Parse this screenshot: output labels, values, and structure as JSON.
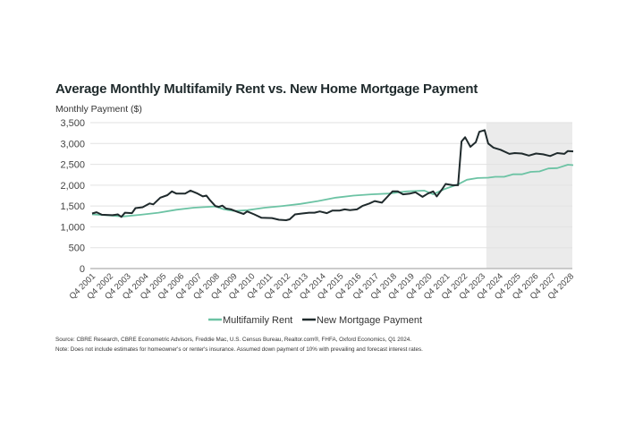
{
  "chart_data": {
    "type": "line",
    "title": "Average Monthly Multifamily Rent vs. New Home Mortgage Payment",
    "ylabel": "Monthly Payment ($)",
    "xlabel": "",
    "ylim": [
      0,
      3500
    ],
    "xlim": [
      2001.75,
      2028.9
    ],
    "yticks": [
      0,
      500,
      1000,
      1500,
      2000,
      2500,
      3000,
      3500
    ],
    "ytick_labels": [
      "0",
      "500",
      "1,000",
      "1,500",
      "2,000",
      "2,500",
      "3,000",
      "3,500"
    ],
    "xtick_labels": [
      "Q4 2001",
      "Q4 2002",
      "Q4 2003",
      "Q4 2004",
      "Q4 2005",
      "Q4 2006",
      "Q4 2007",
      "Q4 2008",
      "Q4 2009",
      "Q4 2010",
      "Q4 2011",
      "Q4 2012",
      "Q4 2013",
      "Q4 2014",
      "Q4 2015",
      "Q4 2016",
      "Q4 2017",
      "Q4 2018",
      "Q4 2019",
      "Q4 2020",
      "Q4 2021",
      "Q4 2022",
      "Q4 2023",
      "Q4 2024",
      "Q4 2025",
      "Q4 2026",
      "Q4 2027",
      "Q4 2028"
    ],
    "grid": true,
    "legend_position": "bottom",
    "forecast_shading": {
      "start": 2024.0,
      "end": 2028.9,
      "color": "#ebebeb"
    },
    "series": [
      {
        "name": "Multifamily Rent",
        "color": "#6cc3a4",
        "points": [
          [
            2001.75,
            1300
          ],
          [
            2002.5,
            1280
          ],
          [
            2003.5,
            1250
          ],
          [
            2004.5,
            1290
          ],
          [
            2005.5,
            1340
          ],
          [
            2006.5,
            1410
          ],
          [
            2007.5,
            1460
          ],
          [
            2008.7,
            1490
          ],
          [
            2009.2,
            1420
          ],
          [
            2009.8,
            1380
          ],
          [
            2010.5,
            1400
          ],
          [
            2011.5,
            1460
          ],
          [
            2012.5,
            1500
          ],
          [
            2013.5,
            1550
          ],
          [
            2014.5,
            1620
          ],
          [
            2015.5,
            1700
          ],
          [
            2016.5,
            1750
          ],
          [
            2017.5,
            1780
          ],
          [
            2018.5,
            1800
          ],
          [
            2019.5,
            1850
          ],
          [
            2020.5,
            1870
          ],
          [
            2021.0,
            1780
          ],
          [
            2021.6,
            1900
          ],
          [
            2022.4,
            2020
          ],
          [
            2022.9,
            2130
          ],
          [
            2023.5,
            2170
          ],
          [
            2024.1,
            2180
          ],
          [
            2024.5,
            2200
          ],
          [
            2025.0,
            2200
          ],
          [
            2025.5,
            2260
          ],
          [
            2026.0,
            2260
          ],
          [
            2026.5,
            2320
          ],
          [
            2027.0,
            2330
          ],
          [
            2027.5,
            2400
          ],
          [
            2028.0,
            2410
          ],
          [
            2028.6,
            2490
          ],
          [
            2028.9,
            2480
          ]
        ]
      },
      {
        "name": "New Mortgage Payment",
        "color": "#1f2a2c",
        "points": [
          [
            2001.75,
            1320
          ],
          [
            2002.0,
            1350
          ],
          [
            2002.3,
            1290
          ],
          [
            2002.9,
            1280
          ],
          [
            2003.2,
            1300
          ],
          [
            2003.4,
            1240
          ],
          [
            2003.6,
            1340
          ],
          [
            2004.0,
            1330
          ],
          [
            2004.2,
            1450
          ],
          [
            2004.6,
            1470
          ],
          [
            2005.0,
            1560
          ],
          [
            2005.2,
            1540
          ],
          [
            2005.6,
            1700
          ],
          [
            2006.0,
            1760
          ],
          [
            2006.25,
            1850
          ],
          [
            2006.5,
            1800
          ],
          [
            2007.0,
            1800
          ],
          [
            2007.3,
            1870
          ],
          [
            2007.7,
            1800
          ],
          [
            2008.0,
            1730
          ],
          [
            2008.2,
            1750
          ],
          [
            2008.4,
            1640
          ],
          [
            2008.7,
            1500
          ],
          [
            2008.9,
            1480
          ],
          [
            2009.1,
            1510
          ],
          [
            2009.3,
            1440
          ],
          [
            2009.6,
            1420
          ],
          [
            2010.0,
            1350
          ],
          [
            2010.3,
            1310
          ],
          [
            2010.5,
            1370
          ],
          [
            2010.9,
            1300
          ],
          [
            2011.3,
            1220
          ],
          [
            2011.9,
            1210
          ],
          [
            2012.3,
            1170
          ],
          [
            2012.7,
            1160
          ],
          [
            2012.9,
            1180
          ],
          [
            2013.2,
            1300
          ],
          [
            2013.6,
            1320
          ],
          [
            2014.0,
            1340
          ],
          [
            2014.3,
            1340
          ],
          [
            2014.6,
            1370
          ],
          [
            2015.0,
            1330
          ],
          [
            2015.3,
            1390
          ],
          [
            2015.7,
            1390
          ],
          [
            2016.0,
            1420
          ],
          [
            2016.3,
            1400
          ],
          [
            2016.7,
            1420
          ],
          [
            2017.0,
            1500
          ],
          [
            2017.4,
            1560
          ],
          [
            2017.7,
            1620
          ],
          [
            2018.1,
            1580
          ],
          [
            2018.5,
            1760
          ],
          [
            2018.7,
            1850
          ],
          [
            2019.0,
            1850
          ],
          [
            2019.3,
            1780
          ],
          [
            2019.7,
            1800
          ],
          [
            2020.0,
            1830
          ],
          [
            2020.4,
            1720
          ],
          [
            2020.7,
            1800
          ],
          [
            2021.0,
            1850
          ],
          [
            2021.2,
            1730
          ],
          [
            2021.5,
            1900
          ],
          [
            2021.7,
            2030
          ],
          [
            2022.1,
            2000
          ],
          [
            2022.4,
            2000
          ],
          [
            2022.6,
            3050
          ],
          [
            2022.8,
            3150
          ],
          [
            2023.1,
            2920
          ],
          [
            2023.4,
            3030
          ],
          [
            2023.6,
            3280
          ],
          [
            2023.9,
            3320
          ],
          [
            2024.1,
            3000
          ],
          [
            2024.4,
            2900
          ],
          [
            2024.8,
            2850
          ],
          [
            2025.3,
            2750
          ],
          [
            2025.6,
            2770
          ],
          [
            2026.0,
            2760
          ],
          [
            2026.4,
            2710
          ],
          [
            2026.8,
            2760
          ],
          [
            2027.2,
            2740
          ],
          [
            2027.6,
            2700
          ],
          [
            2028.0,
            2770
          ],
          [
            2028.4,
            2750
          ],
          [
            2028.6,
            2820
          ],
          [
            2028.9,
            2810
          ]
        ]
      }
    ]
  },
  "footnotes": {
    "source": "Source: CBRE Research, CBRE Econometric Advisors, Freddie Mac, U.S. Census Bureau, Realtor.com®, FHFA, Oxford Economics, Q1 2024.",
    "note": "Note: Does not include estimates for homeowner's or renter's insurance. Assumed down payment of 10% with prevailing and forecast interest rates."
  }
}
